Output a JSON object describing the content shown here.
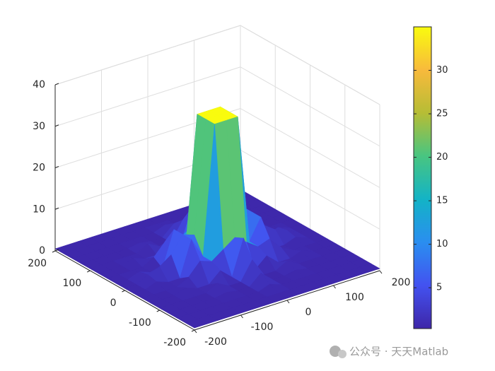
{
  "chart_data": {
    "type": "surface",
    "x": [
      -200,
      -175,
      -150,
      -125,
      -100,
      -75,
      -50,
      -25,
      0,
      25,
      50,
      75,
      100,
      125,
      150,
      175,
      200
    ],
    "y": [
      -200,
      -175,
      -150,
      -125,
      -100,
      -75,
      -50,
      -25,
      0,
      25,
      50,
      75,
      100,
      125,
      150,
      175,
      200
    ],
    "z": [
      [
        0.5,
        0.5,
        0.5,
        0.5,
        0.5,
        0.5,
        0.5,
        0.5,
        0.5,
        0.5,
        0.5,
        0.5,
        0.5,
        0.5,
        0.5,
        0.5,
        0.5
      ],
      [
        0.5,
        0.5,
        0.5,
        0.5,
        0.5,
        0.5,
        0.5,
        0.5,
        0.5,
        0.5,
        0.5,
        0.5,
        0.5,
        0.5,
        0.5,
        0.5,
        0.5
      ],
      [
        0.5,
        0.5,
        0.5,
        0.5,
        0.5,
        0.5,
        0.5,
        0.5,
        1.5,
        0.5,
        0.5,
        0.5,
        0.5,
        0.5,
        0.5,
        0.5,
        0.5
      ],
      [
        0.5,
        0.5,
        0.5,
        0.5,
        0.5,
        1,
        0.5,
        0.5,
        3,
        0.5,
        0.5,
        1,
        0.5,
        0.5,
        0.5,
        0.5,
        0.5
      ],
      [
        0.5,
        0.5,
        0.5,
        0.5,
        0.5,
        2,
        0.5,
        0.5,
        5,
        0.5,
        0.5,
        2,
        0.5,
        0.5,
        0.5,
        0.5,
        0.5
      ],
      [
        0.5,
        0.5,
        0.5,
        1.5,
        0.5,
        0.5,
        3,
        0.5,
        9,
        0.5,
        3,
        0.5,
        0.5,
        1.5,
        0.5,
        0.5,
        0.5
      ],
      [
        0.5,
        0.5,
        0.5,
        0.5,
        2,
        5,
        4,
        6,
        8,
        6,
        4,
        5,
        2,
        0.5,
        0.5,
        0.5,
        0.5
      ],
      [
        0.5,
        0.5,
        1.5,
        0.5,
        0.5,
        9,
        4,
        35,
        35,
        35,
        4,
        9,
        0.5,
        0.5,
        1.5,
        0.5,
        0.5
      ],
      [
        0.5,
        0.5,
        2,
        3,
        5,
        9,
        8,
        35,
        35,
        35,
        8,
        9,
        5,
        3,
        2,
        0.5,
        0.5
      ],
      [
        0.5,
        0.5,
        1.5,
        0.5,
        0.5,
        9,
        4,
        35,
        35,
        35,
        4,
        9,
        0.5,
        0.5,
        1.5,
        0.5,
        0.5
      ],
      [
        0.5,
        0.5,
        0.5,
        0.5,
        2,
        5,
        4,
        6,
        8,
        6,
        4,
        5,
        2,
        0.5,
        0.5,
        0.5,
        0.5
      ],
      [
        0.5,
        0.5,
        0.5,
        1.5,
        0.5,
        0.5,
        3,
        0.5,
        9,
        0.5,
        3,
        0.5,
        0.5,
        1.5,
        0.5,
        0.5,
        0.5
      ],
      [
        0.5,
        0.5,
        0.5,
        0.5,
        0.5,
        2,
        0.5,
        0.5,
        5,
        0.5,
        0.5,
        2,
        0.5,
        0.5,
        0.5,
        0.5,
        0.5
      ],
      [
        0.5,
        0.5,
        0.5,
        0.5,
        0.5,
        1,
        0.5,
        0.5,
        3,
        0.5,
        0.5,
        1,
        0.5,
        0.5,
        0.5,
        0.5,
        0.5
      ],
      [
        0.5,
        0.5,
        0.5,
        0.5,
        0.5,
        0.5,
        0.5,
        0.5,
        1.5,
        0.5,
        0.5,
        0.5,
        0.5,
        0.5,
        0.5,
        0.5,
        0.5
      ],
      [
        0.5,
        0.5,
        0.5,
        0.5,
        0.5,
        0.5,
        0.5,
        0.5,
        0.5,
        0.5,
        0.5,
        0.5,
        0.5,
        0.5,
        0.5,
        0.5,
        0.5
      ],
      [
        0.5,
        0.5,
        0.5,
        0.5,
        0.5,
        0.5,
        0.5,
        0.5,
        0.5,
        0.5,
        0.5,
        0.5,
        0.5,
        0.5,
        0.5,
        0.5,
        0.5
      ]
    ],
    "xlim": [
      -200,
      200
    ],
    "xticks": [
      -200,
      -100,
      0,
      100,
      200
    ],
    "ylim": [
      -200,
      200
    ],
    "yticks": [
      -200,
      -100,
      0,
      100,
      200
    ],
    "zlim": [
      0,
      40
    ],
    "zticks": [
      0,
      10,
      20,
      30,
      40
    ],
    "grid": true,
    "colormap": [
      "#3e26a8",
      "#4352f0",
      "#2a8ef0",
      "#13b3c6",
      "#48c581",
      "#b6bd35",
      "#f8ba3c",
      "#f9fb0e"
    ],
    "clim": [
      0.3,
      35
    ],
    "colorbar_ticks": [
      5,
      10,
      15,
      20,
      25,
      30
    ],
    "watermark": "公众号 · 天天Matlab"
  }
}
